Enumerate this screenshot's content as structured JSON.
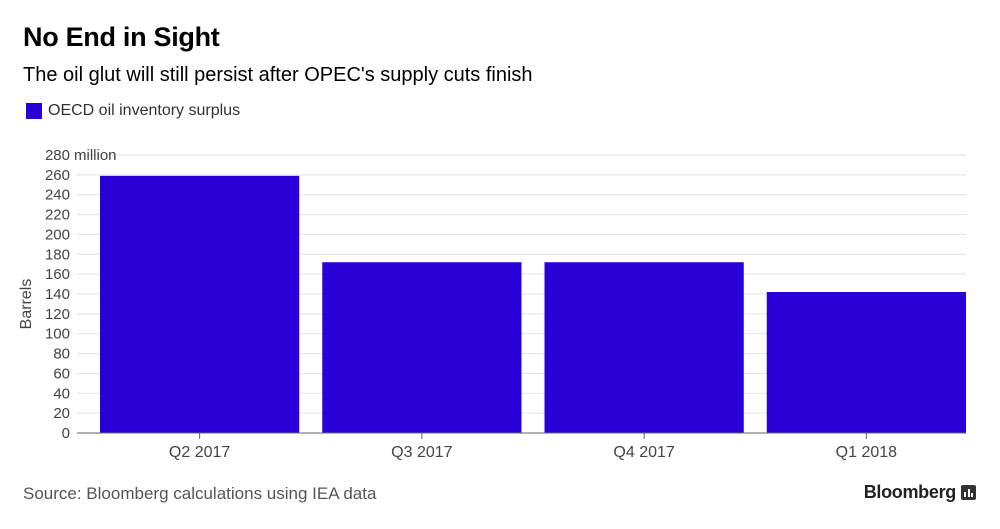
{
  "header": {
    "title": "No End in Sight",
    "subtitle": "The oil glut will still persist after OPEC's supply cuts finish"
  },
  "legend": {
    "label": "OECD oil inventory surplus",
    "color": "#2a00d9"
  },
  "footer": {
    "source": "Source: Bloomberg calculations using IEA data",
    "brand": "Bloomberg"
  },
  "chart_data": {
    "type": "bar",
    "categories": [
      "Q2 2017",
      "Q3 2017",
      "Q4 2017",
      "Q1 2018"
    ],
    "series": [
      {
        "name": "OECD oil inventory surplus",
        "values": [
          259,
          172,
          172,
          142
        ],
        "color": "#2a00d9"
      }
    ],
    "ylabel": "Barrels",
    "yunit": "million",
    "ylim": [
      0,
      280
    ],
    "yticks": [
      0,
      20,
      40,
      60,
      80,
      100,
      120,
      140,
      160,
      180,
      200,
      220,
      240,
      260,
      280
    ],
    "grid": true,
    "legend_position": "top-left"
  }
}
